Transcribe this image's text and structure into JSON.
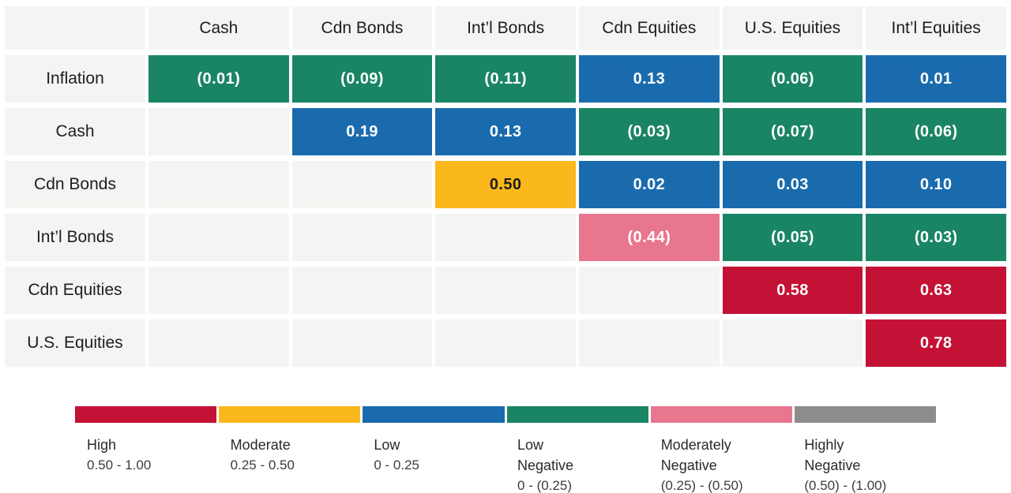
{
  "palette": {
    "high": "#C41236",
    "moderate": "#FBB81C",
    "low": "#1A6BAD",
    "low-negative": "#1A8564",
    "moderately-negative": "#E8768F",
    "highly-negative": "#8C8C8C",
    "empty_cell_bg": "#F4F4F2",
    "dark_text": "#1D1D1D"
  },
  "matrix": {
    "corner_label": "",
    "columns": [
      "Cash",
      "Cdn Bonds",
      "Int’l Bonds",
      "Cdn Equities",
      "U.S. Equities",
      "Int’l Equities"
    ],
    "rows": [
      {
        "label": "Inflation",
        "cells": [
          {
            "text": "(0.01)",
            "cat": "low-negative"
          },
          {
            "text": "(0.09)",
            "cat": "low-negative"
          },
          {
            "text": "(0.11)",
            "cat": "low-negative"
          },
          {
            "text": "0.13",
            "cat": "low"
          },
          {
            "text": "(0.06)",
            "cat": "low-negative"
          },
          {
            "text": "0.01",
            "cat": "low"
          }
        ]
      },
      {
        "label": "Cash",
        "cells": [
          null,
          {
            "text": "0.19",
            "cat": "low"
          },
          {
            "text": "0.13",
            "cat": "low"
          },
          {
            "text": "(0.03)",
            "cat": "low-negative"
          },
          {
            "text": "(0.07)",
            "cat": "low-negative"
          },
          {
            "text": "(0.06)",
            "cat": "low-negative"
          }
        ]
      },
      {
        "label": "Cdn Bonds",
        "cells": [
          null,
          null,
          {
            "text": "0.50",
            "cat": "moderate"
          },
          {
            "text": "0.02",
            "cat": "low"
          },
          {
            "text": "0.03",
            "cat": "low"
          },
          {
            "text": "0.10",
            "cat": "low"
          }
        ]
      },
      {
        "label": "Int’l Bonds",
        "cells": [
          null,
          null,
          null,
          {
            "text": "(0.44)",
            "cat": "moderately-negative"
          },
          {
            "text": "(0.05)",
            "cat": "low-negative"
          },
          {
            "text": "(0.03)",
            "cat": "low-negative"
          }
        ]
      },
      {
        "label": "Cdn Equities",
        "cells": [
          null,
          null,
          null,
          null,
          {
            "text": "0.58",
            "cat": "high"
          },
          {
            "text": "0.63",
            "cat": "high"
          }
        ]
      },
      {
        "label": "U.S. Equities",
        "cells": [
          null,
          null,
          null,
          null,
          null,
          {
            "text": "0.78",
            "cat": "high"
          }
        ]
      }
    ]
  },
  "legend": {
    "items": [
      {
        "name": "High",
        "range": "0.50 - 1.00",
        "cat": "high"
      },
      {
        "name": "Moderate",
        "range": "0.25 - 0.50",
        "cat": "moderate"
      },
      {
        "name": "Low",
        "range": "0 - 0.25",
        "cat": "low"
      },
      {
        "name": "Low\nNegative",
        "range": "0 - (0.25)",
        "cat": "low-negative"
      },
      {
        "name": "Moderately\nNegative",
        "range": "(0.25) - (0.50)",
        "cat": "moderately-negative"
      },
      {
        "name": "Highly\nNegative",
        "range": "(0.50) - (1.00)",
        "cat": "highly-negative"
      }
    ]
  },
  "chart_data": {
    "type": "heatmap",
    "title": "",
    "columns": [
      "Cash",
      "Cdn Bonds",
      "Int’l Bonds",
      "Cdn Equities",
      "U.S. Equities",
      "Int’l Equities"
    ],
    "rows": [
      "Inflation",
      "Cash",
      "Cdn Bonds",
      "Int’l Bonds",
      "Cdn Equities",
      "U.S. Equities"
    ],
    "values": [
      [
        -0.01,
        -0.09,
        -0.11,
        0.13,
        -0.06,
        0.01
      ],
      [
        null,
        0.19,
        0.13,
        -0.03,
        -0.07,
        -0.06
      ],
      [
        null,
        null,
        0.5,
        0.02,
        0.03,
        0.1
      ],
      [
        null,
        null,
        null,
        -0.44,
        -0.05,
        -0.03
      ],
      [
        null,
        null,
        null,
        null,
        0.58,
        0.63
      ],
      [
        null,
        null,
        null,
        null,
        null,
        0.78
      ]
    ],
    "value_format": "negatives shown in parentheses",
    "legend_position": "bottom",
    "scale_bins": [
      {
        "label": "High",
        "range": "0.50 - 1.00",
        "color": "#C41236"
      },
      {
        "label": "Moderate",
        "range": "0.25 - 0.50",
        "color": "#FBB81C"
      },
      {
        "label": "Low",
        "range": "0 - 0.25",
        "color": "#1A6BAD"
      },
      {
        "label": "Low Negative",
        "range": "0 - (0.25)",
        "color": "#1A8564"
      },
      {
        "label": "Moderately Negative",
        "range": "(0.25) - (0.50)",
        "color": "#E8768F"
      },
      {
        "label": "Highly Negative",
        "range": "(0.50) - (1.00)",
        "color": "#8C8C8C"
      }
    ]
  }
}
